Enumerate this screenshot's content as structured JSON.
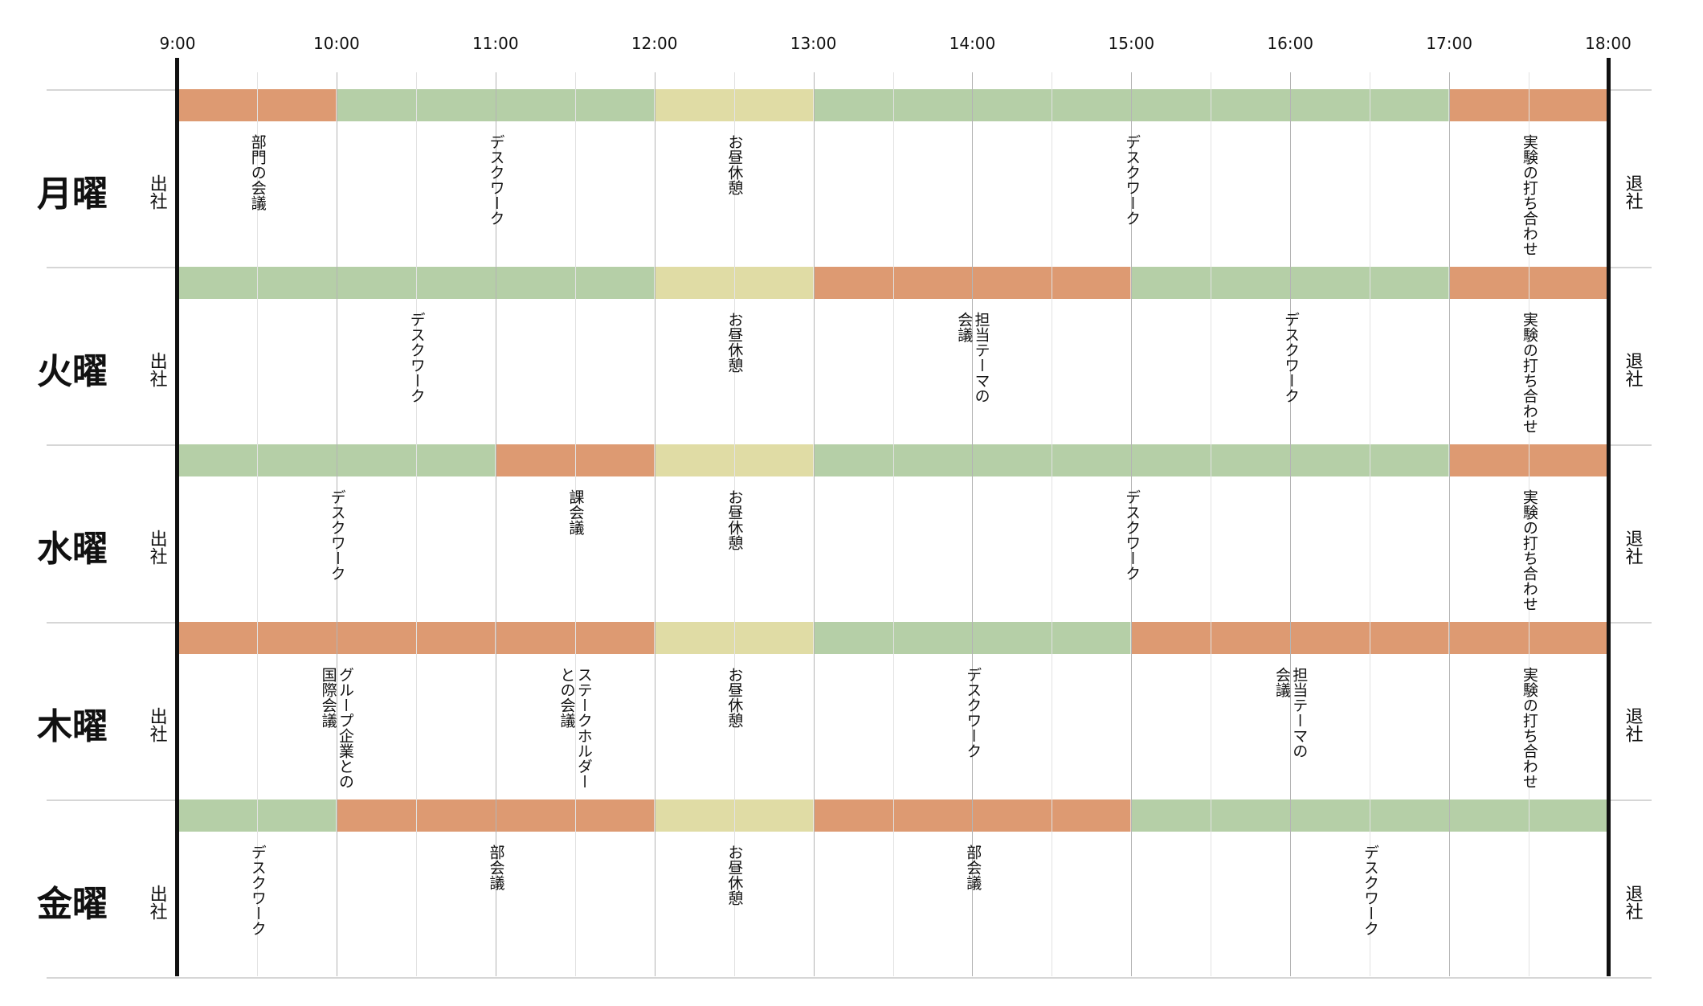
{
  "colors": {
    "meeting": "#dd9a72",
    "desk": "#b5cfa7",
    "lunch": "#e0dca5"
  },
  "schedule": {
    "times": [
      "9:00",
      "10:00",
      "11:00",
      "12:00",
      "13:00",
      "14:00",
      "15:00",
      "16:00",
      "17:00",
      "18:00"
    ],
    "start_label": "出社",
    "end_label": "退社",
    "days": [
      {
        "name": "月曜",
        "blocks": [
          {
            "start": 9,
            "end": 10,
            "kind": "meeting",
            "label": "部門の会議"
          },
          {
            "start": 10,
            "end": 12,
            "kind": "desk",
            "label": "デスクワーク"
          },
          {
            "start": 12,
            "end": 13,
            "kind": "lunch",
            "label": "お昼休憩"
          },
          {
            "start": 13,
            "end": 17,
            "kind": "desk",
            "label": "デスクワーク"
          },
          {
            "start": 17,
            "end": 18,
            "kind": "meeting",
            "label": "実験の打ち合わせ"
          }
        ]
      },
      {
        "name": "火曜",
        "blocks": [
          {
            "start": 9,
            "end": 12,
            "kind": "desk",
            "label": "デスクワーク"
          },
          {
            "start": 12,
            "end": 13,
            "kind": "lunch",
            "label": "お昼休憩"
          },
          {
            "start": 13,
            "end": 15,
            "kind": "meeting",
            "label": "担当テーマの\n会議"
          },
          {
            "start": 15,
            "end": 17,
            "kind": "desk",
            "label": "デスクワーク"
          },
          {
            "start": 17,
            "end": 18,
            "kind": "meeting",
            "label": "実験の打ち合わせ"
          }
        ]
      },
      {
        "name": "水曜",
        "blocks": [
          {
            "start": 9,
            "end": 11,
            "kind": "desk",
            "label": "デスクワーク"
          },
          {
            "start": 11,
            "end": 12,
            "kind": "meeting",
            "label": "課会議"
          },
          {
            "start": 12,
            "end": 13,
            "kind": "lunch",
            "label": "お昼休憩"
          },
          {
            "start": 13,
            "end": 17,
            "kind": "desk",
            "label": "デスクワーク"
          },
          {
            "start": 17,
            "end": 18,
            "kind": "meeting",
            "label": "実験の打ち合わせ"
          }
        ]
      },
      {
        "name": "木曜",
        "blocks": [
          {
            "start": 9,
            "end": 11,
            "kind": "meeting",
            "label": "グループ企業との\n国際会議"
          },
          {
            "start": 11,
            "end": 12,
            "kind": "meeting",
            "label": "ステークホルダー\nとの会議"
          },
          {
            "start": 12,
            "end": 13,
            "kind": "lunch",
            "label": "お昼休憩"
          },
          {
            "start": 13,
            "end": 15,
            "kind": "desk",
            "label": "デスクワーク"
          },
          {
            "start": 15,
            "end": 17,
            "kind": "meeting",
            "label": "担当テーマの\n会議"
          },
          {
            "start": 17,
            "end": 18,
            "kind": "meeting",
            "label": "実験の打ち合わせ"
          }
        ]
      },
      {
        "name": "金曜",
        "blocks": [
          {
            "start": 9,
            "end": 10,
            "kind": "desk",
            "label": "デスクワーク"
          },
          {
            "start": 10,
            "end": 12,
            "kind": "meeting",
            "label": "部会議"
          },
          {
            "start": 12,
            "end": 13,
            "kind": "lunch",
            "label": "お昼休憩"
          },
          {
            "start": 13,
            "end": 15,
            "kind": "meeting",
            "label": "部会議"
          },
          {
            "start": 15,
            "end": 18,
            "kind": "desk",
            "label": "デスクワーク"
          }
        ]
      }
    ]
  }
}
